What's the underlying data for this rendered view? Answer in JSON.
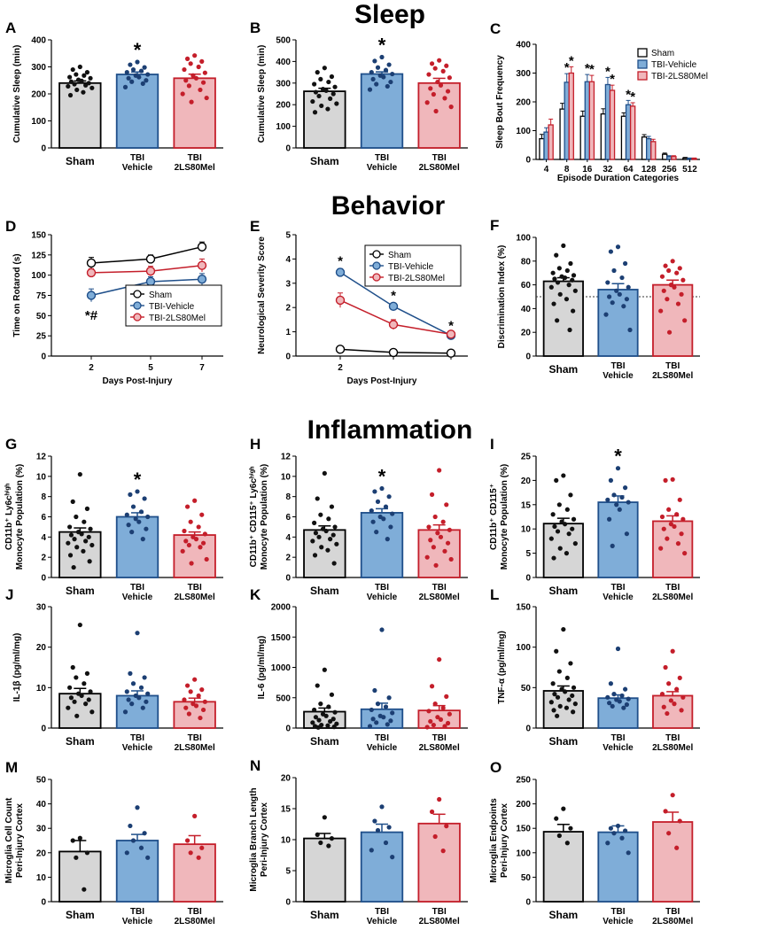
{
  "figure": {
    "sections": [
      "Sleep",
      "Behavior",
      "Inflammation"
    ]
  },
  "colors": {
    "sham_fill": "#d6d6d6",
    "sham_edge": "#000000",
    "sham_dot": "#111111",
    "veh_fill": "#7fadd8",
    "veh_edge": "#1f4f8a",
    "veh_dot": "#1c3f73",
    "mel_fill": "#f0b7bb",
    "mel_edge": "#c41e2a",
    "mel_dot": "#c41e2a"
  },
  "chart_data": [
    {
      "id": "A",
      "label": "A",
      "type": "bar",
      "ylabel": "Cumulative Sleep (min)",
      "ylim": [
        0,
        400
      ],
      "yticks": [
        0,
        100,
        200,
        300,
        400
      ],
      "categories": [
        "Sham",
        "TBI\nVehicle",
        "TBI\n2LS80Mel"
      ],
      "values": [
        240,
        272,
        258
      ],
      "sem": [
        8,
        9,
        15
      ],
      "sig": [
        "",
        "*",
        ""
      ],
      "points": [
        [
          300,
          290,
          280,
          272,
          268,
          262,
          258,
          252,
          248,
          245,
          240,
          236,
          232,
          228,
          222,
          215,
          206,
          195
        ],
        [
          318,
          308,
          298,
          290,
          285,
          280,
          272,
          268,
          262,
          258,
          250,
          245,
          238,
          225
        ],
        [
          342,
          330,
          320,
          312,
          300,
          290,
          278,
          268,
          258,
          250,
          242,
          230,
          215,
          200,
          185,
          170
        ]
      ]
    },
    {
      "id": "B",
      "label": "B",
      "type": "bar",
      "ylabel": "Cumulative Sleep (min)",
      "ylim": [
        0,
        500
      ],
      "yticks": [
        0,
        100,
        200,
        300,
        400,
        500
      ],
      "categories": [
        "Sham",
        "TBI\nVehicle",
        "TBI\n2LS80Mel"
      ],
      "values": [
        262,
        342,
        300
      ],
      "sem": [
        14,
        10,
        22
      ],
      "sig": [
        "",
        "*",
        ""
      ],
      "points": [
        [
          370,
          350,
          330,
          318,
          305,
          295,
          282,
          272,
          265,
          258,
          250,
          240,
          228,
          215,
          205,
          195,
          180,
          165
        ],
        [
          420,
          402,
          385,
          372,
          360,
          350,
          342,
          335,
          328,
          318,
          305,
          295,
          285,
          270
        ],
        [
          405,
          390,
          380,
          368,
          355,
          340,
          325,
          305,
          290,
          275,
          262,
          248,
          230,
          210,
          190,
          170
        ]
      ]
    },
    {
      "id": "C",
      "label": "C",
      "type": "grouped_bar",
      "ylabel": "Sleep Bout Frequency",
      "xlabel": "Episode Duration Categories",
      "ylim": [
        0,
        400
      ],
      "yticks": [
        0,
        100,
        200,
        300,
        400
      ],
      "categories": [
        "4",
        "8",
        "16",
        "32",
        "64",
        "128",
        "256",
        "512"
      ],
      "legend": [
        "Sham",
        "TBI-Vehicle",
        "TBI-2LS80Mel"
      ],
      "series": [
        {
          "name": "Sham",
          "values": [
            72,
            175,
            150,
            158,
            150,
            78,
            18,
            5
          ],
          "sem": [
            15,
            20,
            18,
            18,
            12,
            8,
            4,
            2
          ]
        },
        {
          "name": "TBI-Vehicle",
          "values": [
            95,
            268,
            270,
            260,
            190,
            72,
            10,
            3
          ],
          "sem": [
            15,
            30,
            25,
            25,
            15,
            8,
            3,
            2
          ]
        },
        {
          "name": "TBI-2LS80Mel",
          "values": [
            120,
            300,
            270,
            240,
            185,
            62,
            10,
            3
          ],
          "sem": [
            20,
            22,
            22,
            18,
            12,
            8,
            3,
            2
          ]
        }
      ],
      "sig": [
        [
          1,
          1
        ],
        [
          1,
          2
        ],
        [
          2,
          1
        ],
        [
          2,
          2
        ],
        [
          3,
          1
        ],
        [
          3,
          2
        ],
        [
          4,
          1
        ],
        [
          4,
          2
        ]
      ]
    },
    {
      "id": "D",
      "label": "D",
      "type": "line",
      "ylabel": "Time on Rotarod (s)",
      "xlabel": "Days Post-Injury",
      "ylim": [
        0,
        150
      ],
      "yticks": [
        0,
        25,
        50,
        75,
        100,
        125,
        150
      ],
      "x": [
        "2",
        "5",
        "7"
      ],
      "legend": [
        "Sham",
        "TBI-Vehicle",
        "TBI-2LS80Mel"
      ],
      "series": [
        {
          "name": "Sham",
          "values": [
            115,
            120,
            135
          ],
          "sem": [
            7,
            5,
            6
          ]
        },
        {
          "name": "TBI-Vehicle",
          "values": [
            75,
            92,
            95
          ],
          "sem": [
            8,
            6,
            7
          ]
        },
        {
          "name": "TBI-2LS80Mel",
          "values": [
            103,
            105,
            112
          ],
          "sem": [
            5,
            6,
            8
          ]
        }
      ],
      "sig": [
        "*#",
        "*",
        "*"
      ]
    },
    {
      "id": "E",
      "label": "E",
      "type": "line",
      "ylabel": "Neurological Severity Score",
      "xlabel": "Days Post-Injury",
      "ylim": [
        0,
        5
      ],
      "yticks": [
        0,
        1,
        2,
        3,
        4,
        5
      ],
      "x": [
        "2",
        "",
        ""
      ],
      "legend": [
        "Sham",
        "TBI-Vehicle",
        "TBI-2LS80Mel"
      ],
      "series": [
        {
          "name": "Sham",
          "values": [
            0.28,
            0.15,
            0.12
          ],
          "sem": [
            0.06,
            0.04,
            0.04
          ]
        },
        {
          "name": "TBI-Vehicle",
          "values": [
            3.45,
            2.05,
            0.85
          ],
          "sem": [
            0.15,
            0.12,
            0.08
          ]
        },
        {
          "name": "TBI-2LS80Mel",
          "values": [
            2.3,
            1.3,
            0.9
          ],
          "sem": [
            0.3,
            0.2,
            0.1
          ]
        }
      ],
      "sig": [
        "*",
        "*",
        "*"
      ]
    },
    {
      "id": "F",
      "label": "F",
      "type": "bar",
      "ylabel": "Discrimination Index (%)",
      "ylim": [
        0,
        100
      ],
      "yticks": [
        0,
        20,
        40,
        60,
        80,
        100
      ],
      "refline": 50,
      "categories": [
        "Sham",
        "TBI\nVehicle",
        "TBI\n2LS80Mel"
      ],
      "values": [
        63,
        56,
        60
      ],
      "sem": [
        3,
        5,
        4
      ],
      "sig": [
        "",
        "",
        ""
      ],
      "points": [
        [
          93,
          85,
          78,
          74,
          72,
          70,
          68,
          67,
          66,
          65,
          64,
          62,
          60,
          58,
          55,
          52,
          48,
          44,
          38,
          30,
          22
        ],
        [
          92,
          88,
          78,
          72,
          66,
          62,
          58,
          55,
          52,
          50,
          48,
          45,
          42,
          35,
          22
        ],
        [
          80,
          76,
          74,
          72,
          70,
          67,
          64,
          60,
          58,
          55,
          52,
          48,
          44,
          38,
          30,
          20
        ]
      ]
    },
    {
      "id": "G",
      "label": "G",
      "type": "bar",
      "ylabel": "CD11b⁺ Ly6cʰⁱᵍʰ Monocyte Population (%)",
      "ylim": [
        0,
        12
      ],
      "yticks": [
        0,
        2,
        4,
        6,
        8,
        10,
        12
      ],
      "categories": [
        "Sham",
        "TBI\nVehicle",
        "TBI\n2LS80Mel"
      ],
      "values": [
        4.5,
        6.0,
        4.2
      ],
      "sem": [
        0.4,
        0.4,
        0.3
      ],
      "sig": [
        "",
        "*",
        ""
      ],
      "points": [
        [
          10.2,
          7.5,
          6.8,
          6.0,
          5.5,
          5.0,
          4.8,
          4.5,
          4.3,
          4.2,
          4.0,
          3.8,
          3.6,
          3.4,
          3.2,
          3.0,
          2.6,
          2.2,
          1.6,
          1.0
        ],
        [
          8.5,
          8.2,
          7.8,
          7.0,
          6.5,
          6.2,
          6.0,
          5.8,
          5.5,
          5.2,
          4.8,
          4.5,
          3.8
        ],
        [
          7.6,
          7.0,
          6.2,
          5.5,
          5.0,
          4.6,
          4.3,
          4.0,
          3.8,
          3.6,
          3.4,
          3.2,
          3.0,
          2.6,
          1.8,
          1.4
        ]
      ]
    },
    {
      "id": "H",
      "label": "H",
      "type": "bar",
      "ylabel": "CD11b⁺ CD115⁺ Ly6cʰⁱᵍʰ Monocyte Population (%)",
      "ylim": [
        0,
        12
      ],
      "yticks": [
        0,
        2,
        4,
        6,
        8,
        10,
        12
      ],
      "categories": [
        "Sham",
        "TBI\nVehicle",
        "TBI\n2LS80Mel"
      ],
      "values": [
        4.7,
        6.4,
        4.7
      ],
      "sem": [
        0.4,
        0.4,
        0.5
      ],
      "sig": [
        "",
        "*",
        ""
      ],
      "points": [
        [
          10.3,
          7.8,
          7.0,
          6.2,
          5.8,
          5.4,
          5.0,
          4.8,
          4.6,
          4.4,
          4.2,
          4.0,
          3.8,
          3.6,
          3.3,
          3.0,
          2.7,
          2.2,
          1.4
        ],
        [
          8.8,
          8.5,
          8.0,
          7.5,
          7.0,
          6.6,
          6.3,
          6.0,
          5.8,
          5.5,
          5.0,
          4.5,
          3.8
        ],
        [
          10.6,
          8.2,
          7.2,
          6.0,
          5.5,
          5.0,
          4.7,
          4.4,
          4.0,
          3.7,
          3.4,
          3.0,
          2.6,
          2.0,
          1.8,
          1.2
        ]
      ]
    },
    {
      "id": "I",
      "label": "I",
      "type": "bar",
      "ylabel": "CD11b⁺ CD115⁺ Monocyte Population (%)",
      "ylim": [
        0,
        25
      ],
      "yticks": [
        0,
        5,
        10,
        15,
        20,
        25
      ],
      "categories": [
        "Sham",
        "TBI\nVehicle",
        "TBI\n2LS80Mel"
      ],
      "values": [
        11.1,
        15.5,
        11.6
      ],
      "sem": [
        1.1,
        1.3,
        1.1
      ],
      "sig": [
        "",
        "*",
        ""
      ],
      "points": [
        [
          21,
          20,
          17,
          15,
          14,
          13,
          12,
          11.5,
          11,
          10.5,
          10,
          9.5,
          9,
          8,
          7,
          6,
          5,
          4
        ],
        [
          22.5,
          20,
          18.5,
          17,
          16.5,
          16,
          15.5,
          15,
          14,
          12,
          9,
          6.5
        ],
        [
          20.2,
          20,
          16,
          14,
          13,
          12.5,
          12,
          11,
          10.5,
          10,
          9,
          8,
          7,
          6,
          5
        ]
      ]
    },
    {
      "id": "J",
      "label": "J",
      "type": "bar",
      "ylabel": "IL-1β (pg/ml/mg)",
      "ylim": [
        0,
        30
      ],
      "yticks": [
        0,
        10,
        20,
        30
      ],
      "categories": [
        "Sham",
        "TBI\nVehicle",
        "TBI\n2LS80Mel"
      ],
      "values": [
        8.5,
        8.0,
        6.5
      ],
      "sem": [
        1.3,
        1.2,
        0.9
      ],
      "sig": [
        "",
        "",
        ""
      ],
      "points": [
        [
          25.5,
          15,
          13.5,
          12.5,
          11,
          10,
          9,
          8.5,
          8,
          7.5,
          7,
          6.5,
          6,
          5,
          4,
          3
        ],
        [
          23.5,
          13.5,
          12.5,
          11,
          10,
          9,
          8.5,
          8,
          7.5,
          7,
          6.5,
          6,
          5,
          4
        ],
        [
          12,
          10.5,
          9.5,
          9,
          8,
          7,
          6.5,
          6,
          5.5,
          5,
          4.5,
          3.5,
          2.5
        ]
      ]
    },
    {
      "id": "K",
      "label": "K",
      "type": "bar",
      "ylabel": "IL-6 (pg/ml/mg)",
      "ylim": [
        0,
        2000
      ],
      "yticks": [
        0,
        500,
        1000,
        1500,
        2000
      ],
      "categories": [
        "Sham",
        "TBI\nVehicle",
        "TBI\n2LS80Mel"
      ],
      "values": [
        270,
        310,
        290
      ],
      "sem": [
        60,
        100,
        80
      ],
      "sig": [
        "",
        "",
        ""
      ],
      "points": [
        [
          960,
          700,
          550,
          400,
          350,
          300,
          260,
          230,
          200,
          180,
          150,
          130,
          110,
          90,
          70,
          50,
          40,
          30,
          20,
          10
        ],
        [
          1620,
          620,
          500,
          400,
          350,
          300,
          250,
          200,
          180,
          150,
          120,
          90,
          60,
          30
        ],
        [
          1130,
          690,
          520,
          400,
          330,
          280,
          230,
          180,
          140,
          110,
          80,
          50,
          30,
          15
        ]
      ]
    },
    {
      "id": "L",
      "label": "L",
      "type": "bar",
      "ylabel": "TNF-α (pg/ml/mg)",
      "ylim": [
        0,
        150
      ],
      "yticks": [
        0,
        50,
        100,
        150
      ],
      "categories": [
        "Sham",
        "TBI\nVehicle",
        "TBI\n2LS80Mel"
      ],
      "values": [
        46,
        37,
        40
      ],
      "sem": [
        6,
        4,
        5
      ],
      "sig": [
        "",
        "",
        ""
      ],
      "points": [
        [
          122,
          95,
          80,
          70,
          62,
          55,
          50,
          48,
          45,
          42,
          40,
          38,
          35,
          32,
          30,
          27,
          25,
          22,
          20,
          15
        ],
        [
          98,
          55,
          48,
          42,
          40,
          38,
          36,
          35,
          33,
          31,
          29,
          27,
          25
        ],
        [
          95,
          75,
          62,
          55,
          48,
          42,
          38,
          34,
          30,
          26,
          22,
          18
        ]
      ]
    },
    {
      "id": "M",
      "label": "M",
      "type": "bar",
      "ylabel": "Microglia Cell Count Peri-Injury Cortex",
      "ylim": [
        0,
        50
      ],
      "yticks": [
        0,
        10,
        20,
        30,
        40,
        50
      ],
      "categories": [
        "Sham",
        "TBI\nVehicle",
        "TBI\n2LS80Mel"
      ],
      "values": [
        20.5,
        25,
        23.5
      ],
      "sem": [
        4.5,
        2.5,
        3.5
      ],
      "sig": [
        "",
        "",
        ""
      ],
      "points": [
        [
          26,
          25,
          20,
          18,
          5
        ],
        [
          38.5,
          31,
          28,
          25,
          22,
          20,
          18
        ],
        [
          35,
          25,
          22,
          20,
          18
        ]
      ]
    },
    {
      "id": "N",
      "label": "N",
      "type": "bar",
      "ylabel": "Microglia Branch Length Peri-Injury Cortex",
      "ylim": [
        0,
        20
      ],
      "yticks": [
        0,
        5,
        10,
        15,
        20
      ],
      "categories": [
        "Sham",
        "TBI\nVehicle",
        "TBI\n2LS80Mel"
      ],
      "values": [
        10.2,
        11.2,
        12.6
      ],
      "sem": [
        0.8,
        1.3,
        1.5
      ],
      "sig": [
        "",
        "",
        ""
      ],
      "points": [
        [
          13.6,
          10.8,
          10.2,
          9.5,
          9.0
        ],
        [
          15.3,
          13.0,
          12.0,
          11.5,
          9.5,
          8.3,
          7.2
        ],
        [
          16.5,
          14.5,
          12.2,
          10.5,
          8.2
        ]
      ]
    },
    {
      "id": "O",
      "label": "O",
      "type": "bar",
      "ylabel": "Microglia Endpoints Peri-Injury Cortex",
      "ylim": [
        0,
        250
      ],
      "yticks": [
        0,
        50,
        100,
        150,
        200,
        250
      ],
      "categories": [
        "Sham",
        "TBI\nVehicle",
        "TBI\n2LS80Mel"
      ],
      "values": [
        143,
        142,
        163
      ],
      "sem": [
        15,
        13,
        20
      ],
      "sig": [
        "",
        "",
        ""
      ],
      "points": [
        [
          190,
          170,
          150,
          135,
          120
        ],
        [
          155,
          150,
          145,
          140,
          130,
          120,
          100
        ],
        [
          218,
          185,
          165,
          140,
          110
        ]
      ]
    }
  ]
}
